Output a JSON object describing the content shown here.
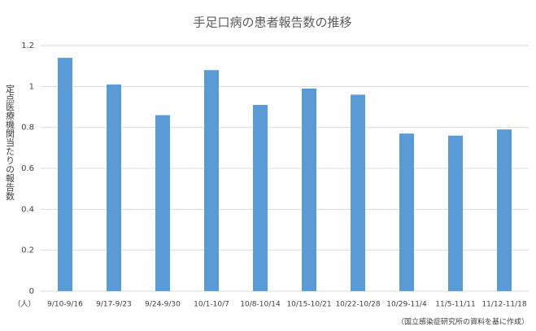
{
  "chart_data": {
    "type": "bar",
    "title": "手足口病の患者報告数の推移",
    "y_label": "定点医療機関当たりの報告数",
    "unit": "（人）",
    "source": "（国立感染症研究所の資料を基に作成）",
    "categories": [
      "9/10-9/16",
      "9/17-9/23",
      "9/24-9/30",
      "10/1-10/7",
      "10/8-10/14",
      "10/15-10/21",
      "10/22-10/28",
      "10/29-11/4",
      "11/5-11/11",
      "11/12-11/18"
    ],
    "values": [
      1.14,
      1.01,
      0.86,
      1.08,
      0.91,
      0.99,
      0.96,
      0.77,
      0.76,
      0.79
    ],
    "color": "#5b9bd5",
    "ylim": [
      0,
      1.2
    ],
    "yticks": [
      0,
      0.2,
      0.4,
      0.6,
      0.8,
      1,
      1.2
    ],
    "grid": true
  }
}
